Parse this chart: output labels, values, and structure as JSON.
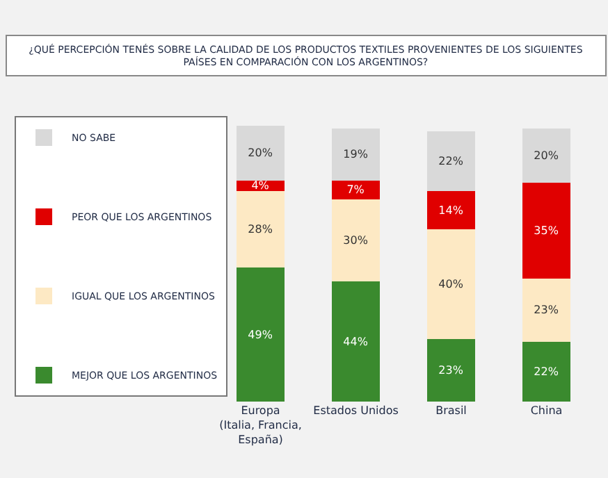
{
  "chart_data": {
    "type": "bar",
    "stacked": true,
    "legend": "left",
    "grid": false,
    "tick_labels": "x",
    "title": "¿QUÉ PERCEPCIÓN TENÉS SOBRE LA CALIDAD DE LOS PRODUCTOS TEXTILES PROVENIENTES DE LOS SIGUIENTES\nPAÍSES EN COMPARACIÓN CON LOS ARGENTINOS?",
    "categories": [
      "Europa\n(Italia, Francia,\nEspaña)",
      "Estados Unidos",
      "Brasil",
      "China"
    ],
    "series": [
      {
        "name": "MEJOR QUE LOS ARGENTINOS",
        "color": "#3a8a2e",
        "values": [
          49,
          44,
          23,
          22
        ],
        "value_labels": [
          "49%",
          "44%",
          "23%",
          "22%"
        ]
      },
      {
        "name": "IGUAL QUE LOS ARGENTINOS",
        "color": "#fde9c4",
        "values": [
          28,
          30,
          40,
          23
        ],
        "value_labels": [
          "28%",
          "30%",
          "40%",
          "23%"
        ]
      },
      {
        "name": "PEOR QUE LOS ARGENTINOS",
        "color": "#e00000",
        "values": [
          4,
          7,
          14,
          35
        ],
        "value_labels": [
          "4%",
          "7%",
          "14%",
          "35%"
        ]
      },
      {
        "name": "NO SABE",
        "color": "#d9d9d9",
        "values": [
          20,
          19,
          22,
          20
        ],
        "value_labels": [
          "20%",
          "19%",
          "22%",
          "20%"
        ]
      }
    ]
  }
}
